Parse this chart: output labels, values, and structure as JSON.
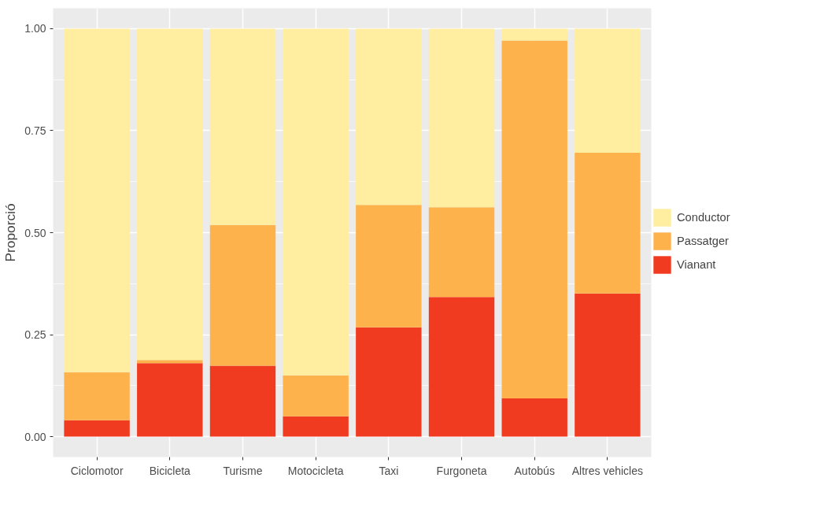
{
  "chart_data": {
    "type": "bar",
    "stacked": true,
    "ylabel": "Proporció",
    "categories": [
      "Ciclomotor",
      "Bicicleta",
      "Turisme",
      "Motocicleta",
      "Taxi",
      "Furgoneta",
      "Autobús",
      "Altres vehicles"
    ],
    "series": [
      {
        "name": "Vianant",
        "color": "#f03b20",
        "values": [
          0.04,
          0.18,
          0.174,
          0.05,
          0.268,
          0.342,
          0.094,
          0.351
        ]
      },
      {
        "name": "Passatger",
        "color": "#feb24c",
        "values": [
          0.118,
          0.008,
          0.345,
          0.1,
          0.3,
          0.22,
          0.877,
          0.345
        ]
      },
      {
        "name": "Conductor",
        "color": "#ffeda0",
        "values": [
          0.842,
          0.812,
          0.481,
          0.85,
          0.432,
          0.438,
          0.029,
          0.304
        ]
      }
    ],
    "ylim": [
      -0.05,
      1.05
    ],
    "yticks": [
      {
        "value": 0,
        "label": "0.00"
      },
      {
        "value": 0.25,
        "label": "0.25"
      },
      {
        "value": 0.5,
        "label": "0.50"
      },
      {
        "value": 0.75,
        "label": "0.75"
      },
      {
        "value": 1,
        "label": "1.00"
      }
    ],
    "grid": true,
    "legend": "right"
  }
}
